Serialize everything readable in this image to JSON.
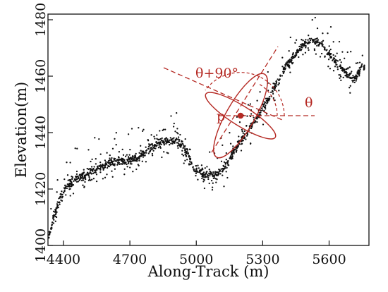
{
  "chart_data": {
    "type": "scatter",
    "xlabel": "Along-Track (m)",
    "ylabel": "Elevation(m)",
    "xlim": [
      4330,
      5780
    ],
    "ylim": [
      1400,
      1482
    ],
    "xticks": [
      4400,
      4700,
      5000,
      5300,
      5600
    ],
    "yticks": [
      1400,
      1420,
      1440,
      1460,
      1480
    ],
    "grid": false,
    "point_color": "#111111",
    "annotation_color": "#b52a24",
    "profile": [
      [
        4330,
        1403
      ],
      [
        4360,
        1411
      ],
      [
        4390,
        1418
      ],
      [
        4420,
        1421
      ],
      [
        4460,
        1424
      ],
      [
        4500,
        1425
      ],
      [
        4540,
        1427
      ],
      [
        4580,
        1428
      ],
      [
        4620,
        1430
      ],
      [
        4660,
        1430
      ],
      [
        4700,
        1430
      ],
      [
        4740,
        1431
      ],
      [
        4780,
        1434
      ],
      [
        4820,
        1436
      ],
      [
        4860,
        1437
      ],
      [
        4900,
        1437
      ],
      [
        4930,
        1436
      ],
      [
        4960,
        1433
      ],
      [
        4985,
        1428
      ],
      [
        5010,
        1426
      ],
      [
        5040,
        1425
      ],
      [
        5080,
        1425
      ],
      [
        5120,
        1427
      ],
      [
        5160,
        1432
      ],
      [
        5200,
        1437
      ],
      [
        5240,
        1441
      ],
      [
        5280,
        1446
      ],
      [
        5320,
        1451
      ],
      [
        5360,
        1457
      ],
      [
        5400,
        1463
      ],
      [
        5440,
        1467
      ],
      [
        5480,
        1471
      ],
      [
        5520,
        1473
      ],
      [
        5560,
        1472
      ],
      [
        5600,
        1468
      ],
      [
        5640,
        1464
      ],
      [
        5680,
        1461
      ],
      [
        5710,
        1459
      ],
      [
        5740,
        1462
      ],
      [
        5760,
        1463
      ]
    ],
    "annotations": {
      "point_label": "p",
      "point": [
        5200,
        1446
      ],
      "angle_label": "θ",
      "perp_angle_label": "θ+90°"
    }
  }
}
